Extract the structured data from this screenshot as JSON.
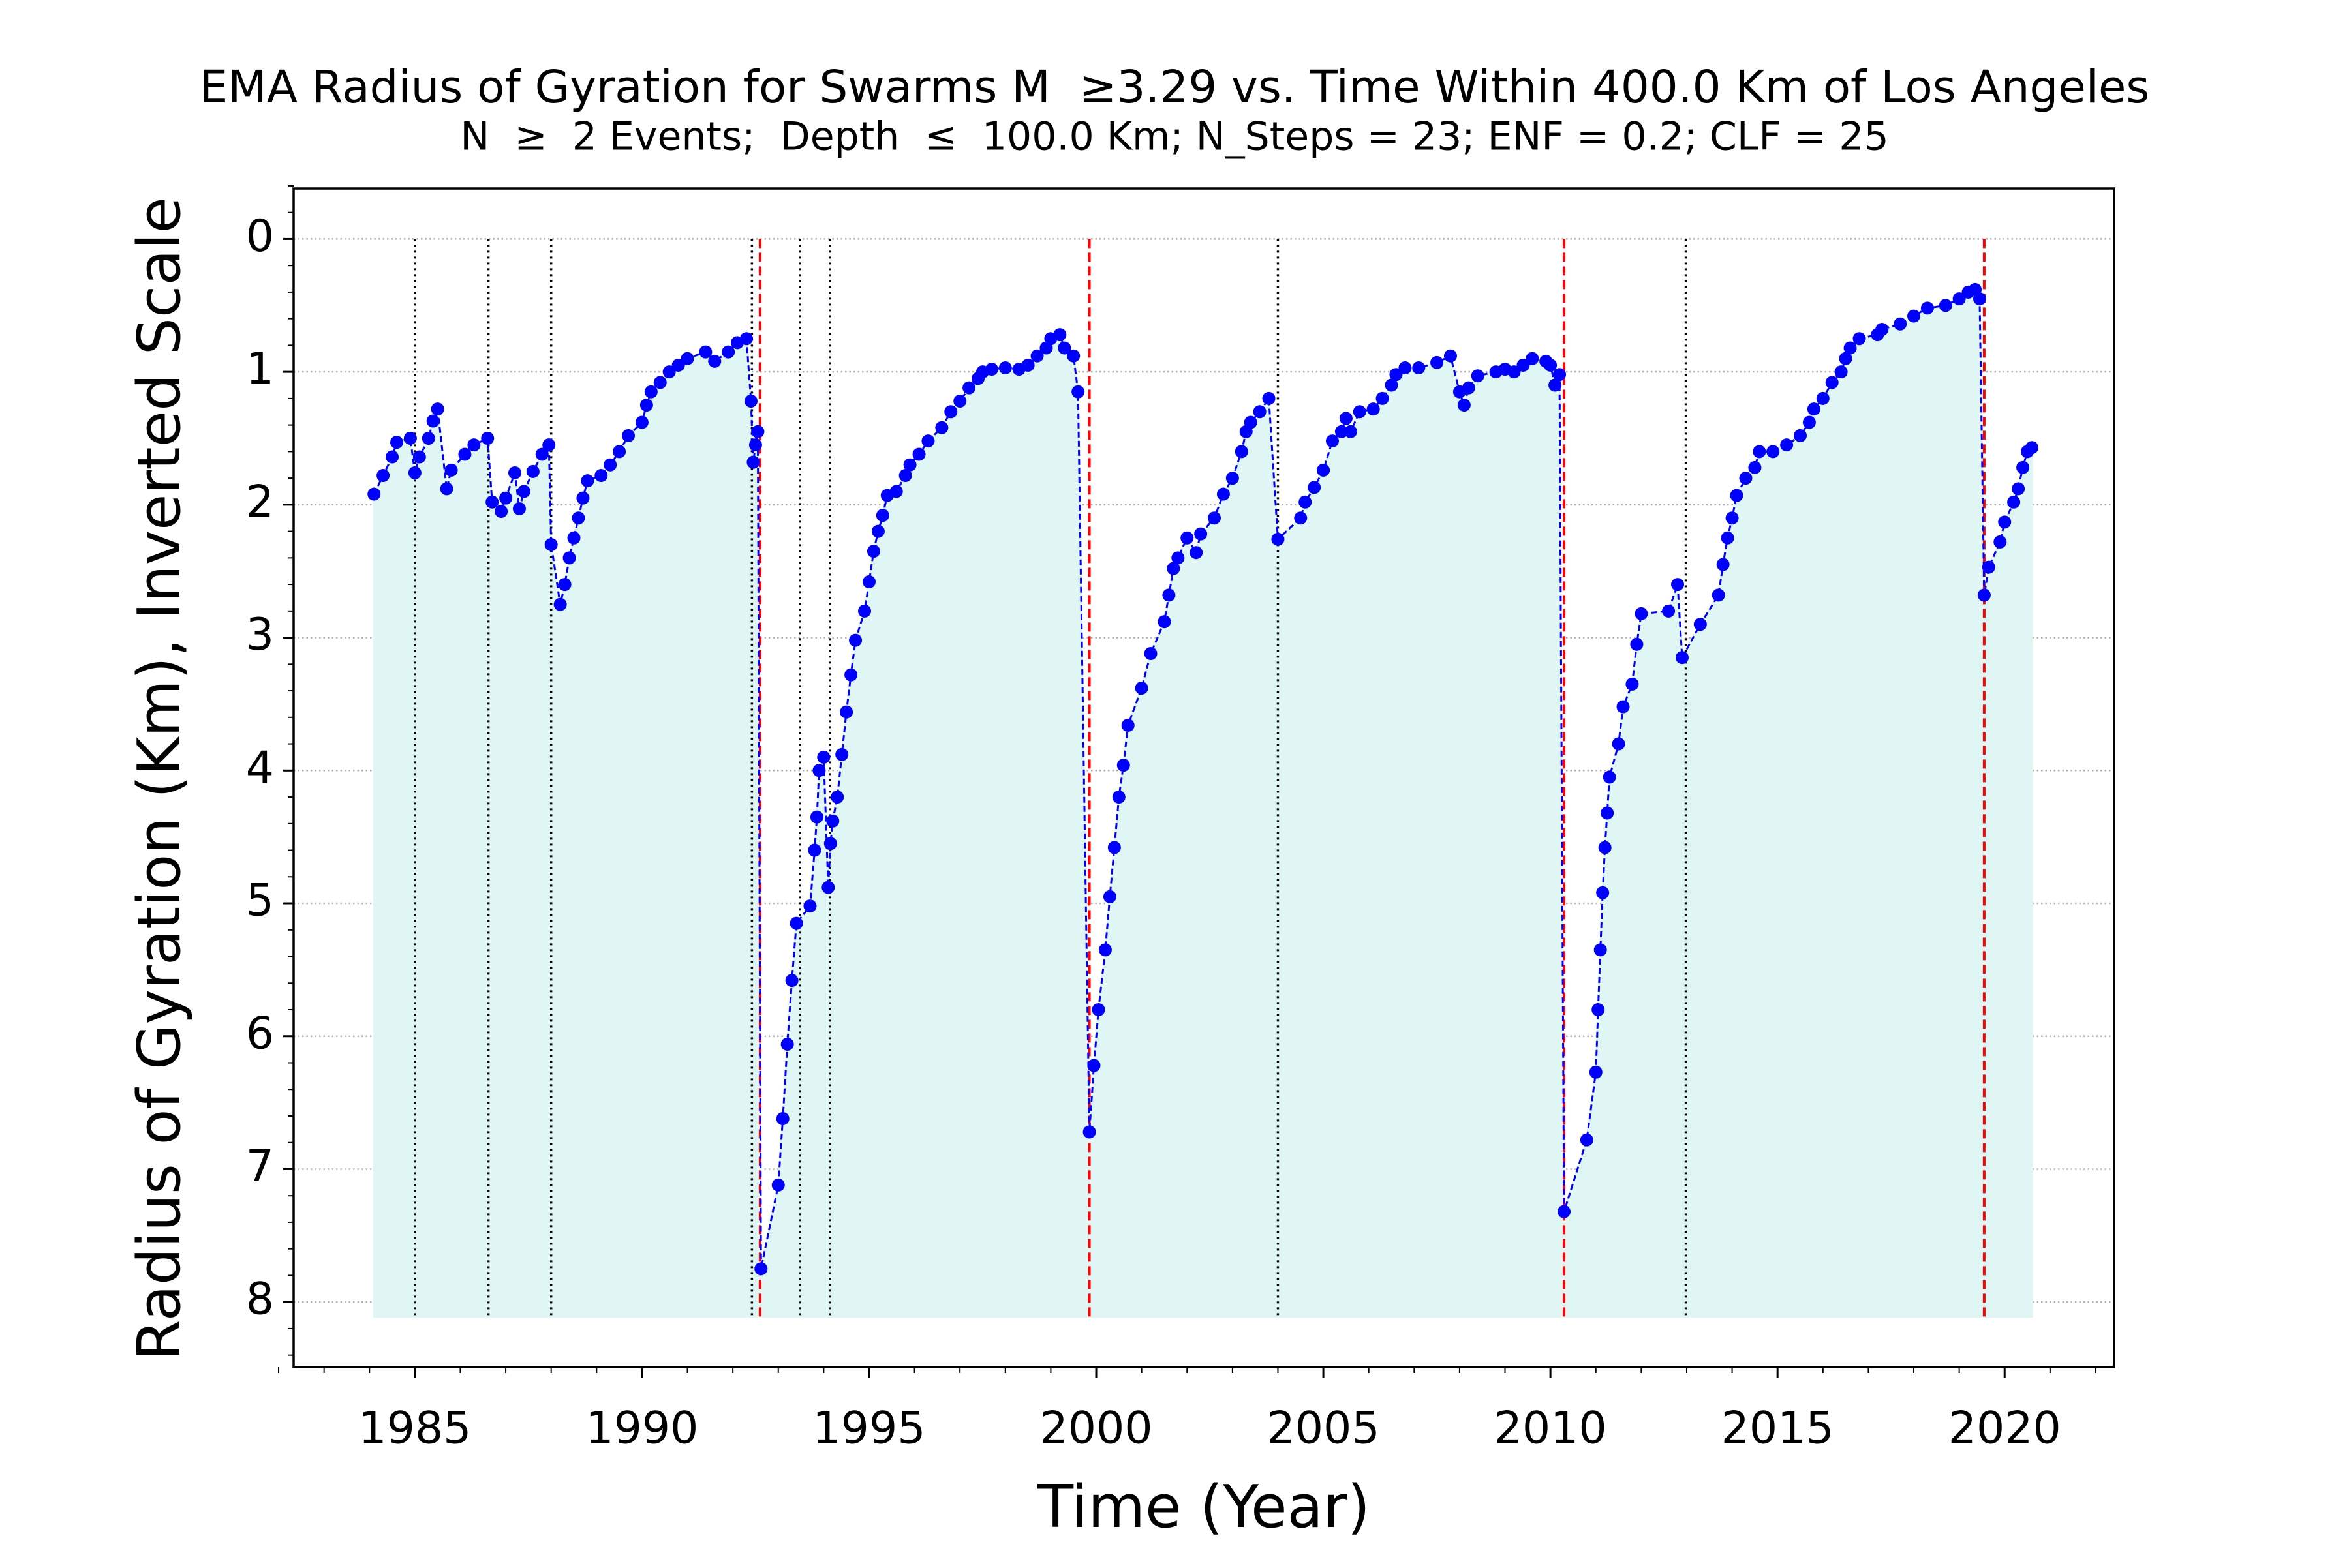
{
  "chart_data": {
    "type": "line",
    "title": "EMA Radius of Gyration for Swarms M  ≥3.29 vs. Time Within 400.0 Km of Los Angeles",
    "subtitle": "N  ≥  2 Events;  Depth  ≤  100.0 Km; N_Steps = 23; ENF = 0.2; CLF = 25",
    "x_label": "Time (Year)",
    "y_label": "Radius of Gyration (Km), Inverted Scale",
    "x": [
      1984.1,
      1984.3,
      1984.5,
      1984.6,
      1984.9,
      1985.0,
      1985.1,
      1985.3,
      1985.4,
      1985.5,
      1985.7,
      1985.8,
      1986.1,
      1986.3,
      1986.6,
      1986.7,
      1986.9,
      1987.0,
      1987.2,
      1987.3,
      1987.4,
      1987.6,
      1987.8,
      1987.95,
      1988.0,
      1988.2,
      1988.3,
      1988.4,
      1988.5,
      1988.6,
      1988.7,
      1988.8,
      1989.1,
      1989.3,
      1989.5,
      1989.7,
      1990.0,
      1990.1,
      1990.2,
      1990.4,
      1990.6,
      1990.8,
      1991.0,
      1991.4,
      1991.6,
      1991.9,
      1992.1,
      1992.3,
      1992.4,
      1992.45,
      1992.5,
      1992.55,
      1992.62,
      1993.0,
      1993.1,
      1993.2,
      1993.3,
      1993.4,
      1993.7,
      1993.8,
      1993.85,
      1993.9,
      1994.0,
      1994.1,
      1994.15,
      1994.2,
      1994.3,
      1994.4,
      1994.5,
      1994.6,
      1994.7,
      1994.9,
      1995.0,
      1995.1,
      1995.2,
      1995.3,
      1995.4,
      1995.6,
      1995.8,
      1995.9,
      1996.1,
      1996.3,
      1996.6,
      1996.8,
      1997.0,
      1997.2,
      1997.4,
      1997.5,
      1997.7,
      1998.0,
      1998.3,
      1998.5,
      1998.7,
      1998.9,
      1999.0,
      1999.2,
      1999.3,
      1999.5,
      1999.6,
      1999.85,
      1999.95,
      2000.05,
      2000.2,
      2000.3,
      2000.4,
      2000.5,
      2000.6,
      2000.7,
      2001.0,
      2001.2,
      2001.5,
      2001.6,
      2001.7,
      2001.8,
      2002.0,
      2002.2,
      2002.3,
      2002.6,
      2002.8,
      2003.0,
      2003.2,
      2003.3,
      2003.4,
      2003.6,
      2003.8,
      2004.0,
      2004.5,
      2004.6,
      2004.8,
      2005.0,
      2005.2,
      2005.4,
      2005.5,
      2005.6,
      2005.8,
      2006.1,
      2006.3,
      2006.5,
      2006.6,
      2006.8,
      2007.1,
      2007.5,
      2007.8,
      2008.0,
      2008.1,
      2008.2,
      2008.4,
      2008.8,
      2009.0,
      2009.2,
      2009.4,
      2009.6,
      2009.9,
      2010.0,
      2010.1,
      2010.2,
      2010.3,
      2010.8,
      2011.0,
      2011.05,
      2011.1,
      2011.15,
      2011.2,
      2011.25,
      2011.3,
      2011.5,
      2011.6,
      2011.8,
      2011.9,
      2012.0,
      2012.6,
      2012.8,
      2012.9,
      2013.3,
      2013.7,
      2013.8,
      2013.9,
      2014.0,
      2014.1,
      2014.3,
      2014.5,
      2014.6,
      2014.9,
      2015.2,
      2015.5,
      2015.7,
      2015.8,
      2016.0,
      2016.2,
      2016.4,
      2016.5,
      2016.6,
      2016.8,
      2017.2,
      2017.3,
      2017.7,
      2018.0,
      2018.3,
      2018.7,
      2019.0,
      2019.2,
      2019.35,
      2019.45,
      2019.55,
      2019.65,
      2019.9,
      2020.0,
      2020.2,
      2020.3,
      2020.4,
      2020.5,
      2020.6
    ],
    "series": [
      {
        "name": "EMA Radius of Gyration",
        "color": "#0000ff",
        "values": [
          1.92,
          1.78,
          1.64,
          1.53,
          1.5,
          1.76,
          1.64,
          1.5,
          1.37,
          1.28,
          1.88,
          1.74,
          1.62,
          1.55,
          1.5,
          1.98,
          2.05,
          1.95,
          1.76,
          2.03,
          1.9,
          1.75,
          1.62,
          1.55,
          2.3,
          2.75,
          2.6,
          2.4,
          2.25,
          2.1,
          1.95,
          1.82,
          1.78,
          1.7,
          1.6,
          1.48,
          1.38,
          1.25,
          1.15,
          1.08,
          1.0,
          0.95,
          0.9,
          0.85,
          0.92,
          0.85,
          0.78,
          0.75,
          1.22,
          1.68,
          1.55,
          1.45,
          7.75,
          7.12,
          6.62,
          6.06,
          5.58,
          5.15,
          5.02,
          4.6,
          4.35,
          4.0,
          3.9,
          4.88,
          4.55,
          4.38,
          4.2,
          3.88,
          3.56,
          3.28,
          3.02,
          2.8,
          2.58,
          2.35,
          2.2,
          2.08,
          1.93,
          1.9,
          1.78,
          1.7,
          1.62,
          1.52,
          1.42,
          1.3,
          1.22,
          1.12,
          1.05,
          1.0,
          0.98,
          0.97,
          0.98,
          0.95,
          0.88,
          0.82,
          0.75,
          0.72,
          0.82,
          0.88,
          1.15,
          6.72,
          6.22,
          5.8,
          5.35,
          4.95,
          4.58,
          4.2,
          3.96,
          3.66,
          3.38,
          3.12,
          2.88,
          2.68,
          2.48,
          2.4,
          2.25,
          2.36,
          2.22,
          2.1,
          1.92,
          1.8,
          1.6,
          1.45,
          1.38,
          1.3,
          1.2,
          2.26,
          2.1,
          1.98,
          1.87,
          1.74,
          1.52,
          1.45,
          1.35,
          1.45,
          1.3,
          1.28,
          1.2,
          1.1,
          1.02,
          0.97,
          0.97,
          0.93,
          0.88,
          1.15,
          1.25,
          1.12,
          1.03,
          1.0,
          0.98,
          1.0,
          0.95,
          0.9,
          0.92,
          0.95,
          1.1,
          1.02,
          7.32,
          6.78,
          6.27,
          5.8,
          5.35,
          4.92,
          4.58,
          4.32,
          4.05,
          3.8,
          3.52,
          3.35,
          3.05,
          2.82,
          2.8,
          2.6,
          3.15,
          2.9,
          2.68,
          2.45,
          2.25,
          2.1,
          1.93,
          1.8,
          1.72,
          1.6,
          1.6,
          1.55,
          1.48,
          1.38,
          1.28,
          1.2,
          1.08,
          1.0,
          0.9,
          0.82,
          0.75,
          0.72,
          0.68,
          0.64,
          0.58,
          0.52,
          0.5,
          0.45,
          0.4,
          0.38,
          0.45,
          2.68,
          2.47,
          2.28,
          2.13,
          1.98,
          1.88,
          1.72,
          1.6,
          1.57
        ]
      }
    ],
    "fill_color": "#e0f6f5",
    "fill_to": 8.11,
    "event_lines": [
      {
        "x": 1985.0,
        "color": "#000000",
        "style": "dotted"
      },
      {
        "x": 1986.62,
        "color": "#000000",
        "style": "dotted"
      },
      {
        "x": 1988.0,
        "color": "#000000",
        "style": "dotted"
      },
      {
        "x": 1992.42,
        "color": "#000000",
        "style": "dotted"
      },
      {
        "x": 1992.6,
        "color": "#ff0000",
        "style": "dashed"
      },
      {
        "x": 1993.48,
        "color": "#000000",
        "style": "dotted"
      },
      {
        "x": 1994.14,
        "color": "#000000",
        "style": "dotted"
      },
      {
        "x": 1999.85,
        "color": "#ff0000",
        "style": "dashed"
      },
      {
        "x": 2004.0,
        "color": "#000000",
        "style": "dotted"
      },
      {
        "x": 2010.3,
        "color": "#ff0000",
        "style": "dashed"
      },
      {
        "x": 2012.98,
        "color": "#000000",
        "style": "dotted"
      },
      {
        "x": 2019.55,
        "color": "#ff0000",
        "style": "dashed"
      }
    ],
    "event_line_span": [
      0,
      8.11
    ],
    "xlim": [
      1982.33,
      2022.41
    ],
    "ylim": [
      8.49,
      -0.38
    ],
    "xticks": [
      1985,
      1990,
      1995,
      2000,
      2005,
      2010,
      2015,
      2020
    ],
    "yticks": [
      0,
      1,
      2,
      3,
      4,
      5,
      6,
      7,
      8
    ],
    "minor_per_major": 5,
    "grid": "y"
  }
}
